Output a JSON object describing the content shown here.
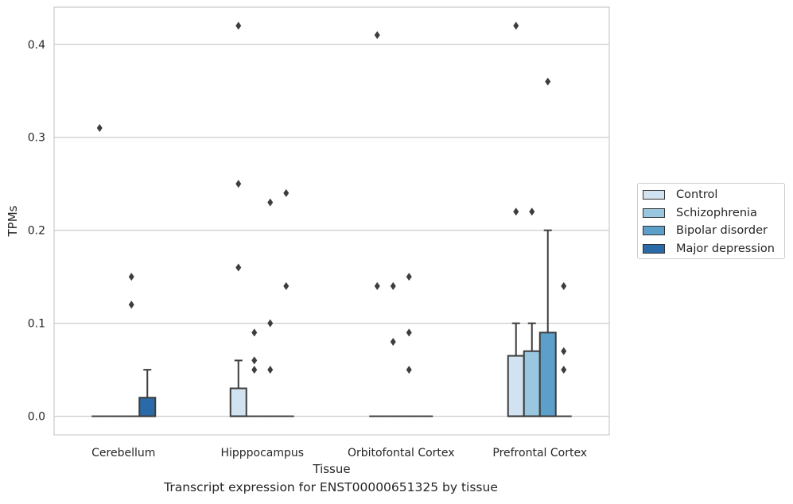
{
  "chart_data": {
    "type": "box",
    "title": "",
    "caption": "Transcript expression for ENST00000651325 by tissue",
    "xlabel": "Tissue",
    "ylabel": "TPMs",
    "ylim": [
      -0.02,
      0.44
    ],
    "yticks": [
      "0.0",
      "0.1",
      "0.2",
      "0.3",
      "0.4"
    ],
    "ytick_values": [
      0.0,
      0.1,
      0.2,
      0.3,
      0.4
    ],
    "categories": [
      "Cerebellum",
      "Hipppocampus",
      "Orbitofontal Cortex",
      "Prefrontal Cortex"
    ],
    "grid": "horizontal",
    "legend_position": "right",
    "series": [
      {
        "name": "Control",
        "color": "#d1e2f1",
        "boxes": [
          {
            "q1": 0.0,
            "median": 0.0,
            "q3": 0.0,
            "whisker_low": 0.0,
            "whisker_high": 0.0,
            "outliers": [
              0.31
            ]
          },
          {
            "q1": 0.0,
            "median": 0.0,
            "q3": 0.03,
            "whisker_low": 0.0,
            "whisker_high": 0.06,
            "outliers": [
              0.42,
              0.25,
              0.16
            ]
          },
          {
            "q1": 0.0,
            "median": 0.0,
            "q3": 0.0,
            "whisker_low": 0.0,
            "whisker_high": 0.0,
            "outliers": [
              0.41,
              0.14
            ]
          },
          {
            "q1": 0.0,
            "median": 0.0,
            "q3": 0.065,
            "whisker_low": 0.0,
            "whisker_high": 0.1,
            "outliers": [
              0.42,
              0.22
            ]
          }
        ]
      },
      {
        "name": "Schizophrenia",
        "color": "#9ac7e0",
        "boxes": [
          {
            "q1": 0.0,
            "median": 0.0,
            "q3": 0.0,
            "whisker_low": 0.0,
            "whisker_high": 0.0,
            "outliers": []
          },
          {
            "q1": 0.0,
            "median": 0.0,
            "q3": 0.0,
            "whisker_low": 0.0,
            "whisker_high": 0.0,
            "outliers": [
              0.09,
              0.06,
              0.05
            ]
          },
          {
            "q1": 0.0,
            "median": 0.0,
            "q3": 0.0,
            "whisker_low": 0.0,
            "whisker_high": 0.0,
            "outliers": [
              0.14,
              0.08
            ]
          },
          {
            "q1": 0.0,
            "median": 0.0,
            "q3": 0.07,
            "whisker_low": 0.0,
            "whisker_high": 0.1,
            "outliers": [
              0.22
            ]
          }
        ]
      },
      {
        "name": "Bipolar disorder",
        "color": "#5c9fcb",
        "boxes": [
          {
            "q1": 0.0,
            "median": 0.0,
            "q3": 0.0,
            "whisker_low": 0.0,
            "whisker_high": 0.0,
            "outliers": [
              0.15,
              0.12
            ]
          },
          {
            "q1": 0.0,
            "median": 0.0,
            "q3": 0.0,
            "whisker_low": 0.0,
            "whisker_high": 0.0,
            "outliers": [
              0.23,
              0.1,
              0.05
            ]
          },
          {
            "q1": 0.0,
            "median": 0.0,
            "q3": 0.0,
            "whisker_low": 0.0,
            "whisker_high": 0.0,
            "outliers": [
              0.15,
              0.09,
              0.05
            ]
          },
          {
            "q1": 0.0,
            "median": 0.0,
            "q3": 0.09,
            "whisker_low": 0.0,
            "whisker_high": 0.2,
            "outliers": [
              0.36
            ]
          }
        ]
      },
      {
        "name": "Major depression",
        "color": "#2a6aa8",
        "boxes": [
          {
            "q1": 0.0,
            "median": 0.0,
            "q3": 0.02,
            "whisker_low": 0.0,
            "whisker_high": 0.05,
            "outliers": []
          },
          {
            "q1": 0.0,
            "median": 0.0,
            "q3": 0.0,
            "whisker_low": 0.0,
            "whisker_high": 0.0,
            "outliers": [
              0.24,
              0.14
            ]
          },
          {
            "q1": 0.0,
            "median": 0.0,
            "q3": 0.0,
            "whisker_low": 0.0,
            "whisker_high": 0.0,
            "outliers": []
          },
          {
            "q1": 0.0,
            "median": 0.0,
            "q3": 0.0,
            "whisker_low": 0.0,
            "whisker_high": 0.0,
            "outliers": [
              0.14,
              0.07,
              0.05
            ]
          }
        ]
      }
    ]
  }
}
